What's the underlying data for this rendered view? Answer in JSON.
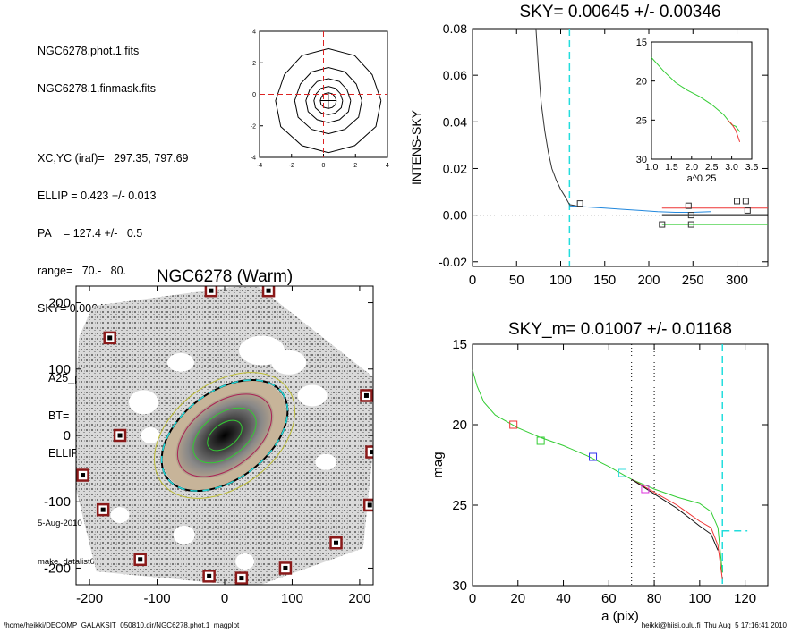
{
  "info": {
    "line1": "NGC6278.phot.1.fits",
    "line2": "NGC6278.1.finmask.fits",
    "line3": "XC,YC (iraf)=   297.35, 797.69",
    "line4": "ELLIP = 0.423 +/- 0.013",
    "line5": "PA    = 127.4 +/-   0.5",
    "line6": "range=   70.-   80.",
    "line7": "SKY= 0.00645 +/- 0.00346",
    "line8": "A25_pix= 69.0   T=-2.0",
    "line9": "BT=  13.69   MABS=-19.77",
    "line10": "ELLIP, PA= 0.505  127.0",
    "date": "5-Aug-2010 17:16:41.00",
    "program": "make_datalist0.pro (version HS230610)"
  },
  "footer": {
    "left": "/home/heikki/DECOMP_GALAKSIT_050810.dir/NGC6278.phot.1_magplot",
    "right": "heikki@hiisi.oulu.fi  Thu Aug  5 17:16:41 2010"
  },
  "chart_data": [
    {
      "type": "contour",
      "title": "",
      "xlim": [
        -4,
        4
      ],
      "ylim": [
        -4,
        4
      ],
      "xticks": [
        "-4",
        "-2",
        "0",
        "2",
        "4"
      ],
      "yticks": [
        "-4",
        "-2",
        "0",
        "2",
        "4"
      ],
      "center": [
        0.3,
        -0.4
      ],
      "contour_radii": [
        3.3,
        2.1,
        1.4,
        0.9,
        0.5
      ],
      "crosshair_color": "#dd2222"
    },
    {
      "type": "line",
      "title": "SKY= 0.00645 +/- 0.00346",
      "xlabel": "",
      "ylabel": "INTENS-SKY",
      "xlim": [
        0,
        335
      ],
      "ylim": [
        -0.022,
        0.08
      ],
      "xticks": [
        0,
        50,
        100,
        150,
        200,
        250,
        300
      ],
      "yticks": [
        "-0.02",
        "0.00",
        "0.02",
        "0.04",
        "0.06",
        "0.08"
      ],
      "vline_x": 110,
      "series": [
        {
          "color": "#333333",
          "x": [
            72,
            75,
            78,
            82,
            86,
            90,
            95,
            100,
            105,
            110,
            115,
            120
          ],
          "y": [
            0.08,
            0.062,
            0.048,
            0.036,
            0.027,
            0.02,
            0.015,
            0.011,
            0.008,
            0.0045,
            0.0042,
            0.0038
          ]
        },
        {
          "color": "#2288dd",
          "x": [
            110,
            130,
            150,
            170,
            190,
            210,
            230,
            250,
            270
          ],
          "y": [
            0.004,
            0.0035,
            0.003,
            0.0025,
            0.002,
            0.0015,
            0.0012,
            0.0012,
            0.0015
          ]
        },
        {
          "color": "#ee3333",
          "x": [
            215,
            250,
            290,
            335
          ],
          "y": [
            0.003,
            0.003,
            0.003,
            0.003
          ]
        },
        {
          "color": "#000000",
          "x": [
            215,
            335
          ],
          "y": [
            0.0,
            0.0
          ]
        },
        {
          "color": "#33cc33",
          "x": [
            215,
            335
          ],
          "y": [
            -0.004,
            -0.004
          ]
        }
      ],
      "squares": [
        {
          "x": 122,
          "y": 0.005
        },
        {
          "x": 215,
          "y": -0.004
        },
        {
          "x": 245,
          "y": 0.004
        },
        {
          "x": 248,
          "y": 0.0
        },
        {
          "x": 248,
          "y": -0.004
        },
        {
          "x": 300,
          "y": 0.006
        },
        {
          "x": 310,
          "y": 0.006
        },
        {
          "x": 312,
          "y": 0.002
        }
      ]
    },
    {
      "type": "line",
      "title": "",
      "xlabel": "a^0.25",
      "ylabel": "",
      "xlim": [
        1.0,
        3.5
      ],
      "ylim": [
        30,
        15
      ],
      "xticks": [
        "1.0",
        "1.5",
        "2.0",
        "2.5",
        "3.0",
        "3.5"
      ],
      "yticks": [
        "15",
        "20",
        "25",
        "30"
      ],
      "series": [
        {
          "color": "#33cc33",
          "x": [
            1.0,
            1.3,
            1.6,
            1.9,
            2.2,
            2.5,
            2.8,
            3.0,
            3.1,
            3.2
          ],
          "y": [
            17.0,
            18.7,
            20.2,
            21.2,
            22.0,
            23.0,
            24.3,
            25.6,
            25.8,
            26.5
          ]
        },
        {
          "color": "#ee3333",
          "x": [
            2.9,
            3.0,
            3.1,
            3.2
          ],
          "y": [
            25.0,
            25.5,
            26.3,
            27.8
          ]
        }
      ]
    },
    {
      "type": "line",
      "title": "SKY_m=  0.01007 +/- 0.01168",
      "xlabel": "a (pix)",
      "ylabel": "mag",
      "xlim": [
        0,
        130
      ],
      "ylim": [
        30,
        15
      ],
      "xticks": [
        0,
        20,
        40,
        60,
        80,
        100,
        120
      ],
      "yticks": [
        "15",
        "20",
        "25",
        "30"
      ],
      "vlines_dotted": [
        70,
        80
      ],
      "vline_dashed": 110,
      "sky_level": 26.6,
      "series": [
        {
          "color": "#33cc33",
          "x": [
            0,
            2,
            5,
            10,
            15,
            20,
            30,
            40,
            50,
            60,
            70,
            80,
            90,
            100,
            105,
            108,
            110
          ],
          "y": [
            16.6,
            17.6,
            18.6,
            19.4,
            19.8,
            20.2,
            20.8,
            21.3,
            21.9,
            22.6,
            23.4,
            24.0,
            24.5,
            24.9,
            25.4,
            26.4,
            29.2
          ]
        },
        {
          "color": "#ee3333",
          "x": [
            70,
            80,
            90,
            100,
            105,
            108,
            110
          ],
          "y": [
            23.4,
            24.2,
            25.0,
            26.0,
            26.4,
            27.5,
            29.6
          ]
        },
        {
          "color": "#111111",
          "x": [
            70,
            80,
            90,
            100,
            105,
            108
          ],
          "y": [
            23.4,
            24.3,
            25.2,
            26.3,
            26.8,
            27.8
          ]
        }
      ],
      "squares": [
        {
          "x": 18,
          "y": 20.0,
          "color": "#ee3333"
        },
        {
          "x": 30,
          "y": 21.0,
          "color": "#33cc33"
        },
        {
          "x": 53,
          "y": 22.0,
          "color": "#3333ee"
        },
        {
          "x": 66,
          "y": 23.0,
          "color": "#33dddd"
        },
        {
          "x": 76,
          "y": 24.0,
          "color": "#dd33dd"
        }
      ]
    },
    {
      "type": "image",
      "title": "NGC6278 (Warm)",
      "xlim": [
        -220,
        220
      ],
      "ylim": [
        -225,
        225
      ],
      "xticks": [
        -200,
        -100,
        0,
        100,
        200
      ],
      "yticks": [
        -200,
        -100,
        0,
        100,
        200
      ],
      "ellipse_pa": 127.4,
      "marked_stars": [
        [
          -170,
          147
        ],
        [
          -20,
          218
        ],
        [
          65,
          218
        ],
        [
          210,
          60
        ],
        [
          218,
          -25
        ],
        [
          -155,
          0
        ],
        [
          -210,
          -60
        ],
        [
          -180,
          -112
        ],
        [
          215,
          -105
        ],
        [
          165,
          -162
        ],
        [
          -125,
          -187
        ],
        [
          -23,
          -212
        ],
        [
          25,
          -215
        ],
        [
          90,
          -200
        ]
      ]
    }
  ]
}
